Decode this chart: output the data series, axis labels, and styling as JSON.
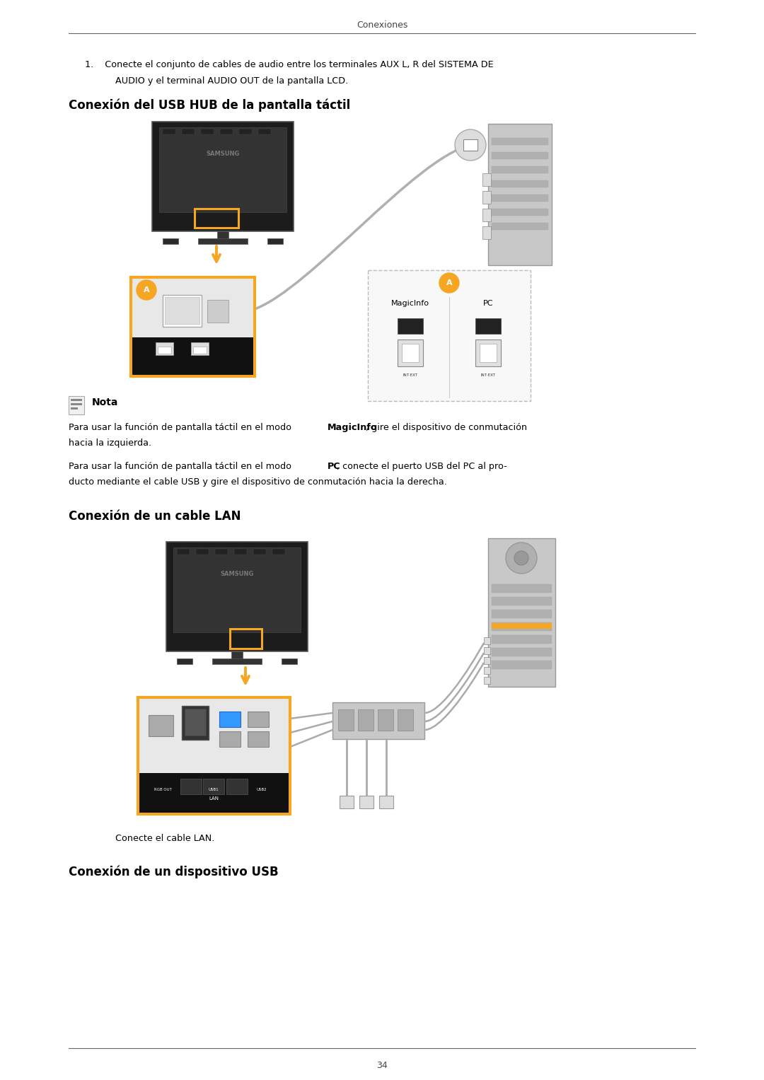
{
  "page_width": 10.8,
  "page_height": 15.27,
  "bg_color": "#ffffff",
  "header_text": "Conexiones",
  "footer_text": "34",
  "orange": "#F5A623",
  "black": "#111111",
  "dark_gray": "#2a2a2a",
  "mid_gray": "#888888",
  "light_gray": "#cccccc",
  "very_light_gray": "#e8e8e8",
  "text_color": "#000000",
  "section1_title": "Conexión del USB HUB de la pantalla táctil",
  "section2_title": "Conexión de un cable LAN",
  "section3_title": "Conexión de un dispositivo USB",
  "item1_line1": "1.    Conecte el conjunto de cables de audio entre los terminales AUX L, R del SISTEMA DE",
  "item1_line2": "AUDIO y el terminal AUDIO OUT de la pantalla LCD.",
  "nota_label": "Nota",
  "nota1_pre": "Para usar la función de pantalla táctil en el modo ",
  "nota1_bold": "MagicInfo",
  "nota1_post": ", gire el dispositivo de conmutación",
  "nota1_line2": "hacia la izquierda.",
  "nota2_pre": "Para usar la función de pantalla táctil en el modo ",
  "nota2_bold": "PC",
  "nota2_post": ", conecte el puerto USB del PC al pro-",
  "nota2_line2": "ducto mediante el cable USB y gire el dispositivo de conmutación hacia la derecha.",
  "lan_caption": "Conecte el cable LAN.",
  "magicinfo_label": "MagicInfo",
  "pc_label": "PC",
  "int_ext_label": "INT·EXT",
  "rgb_out_label": "RGB OUT",
  "usb1_label": "USB1",
  "usb2_label": "USB2",
  "lan_label": "LAN",
  "samsung_label": "SAMSUNG"
}
